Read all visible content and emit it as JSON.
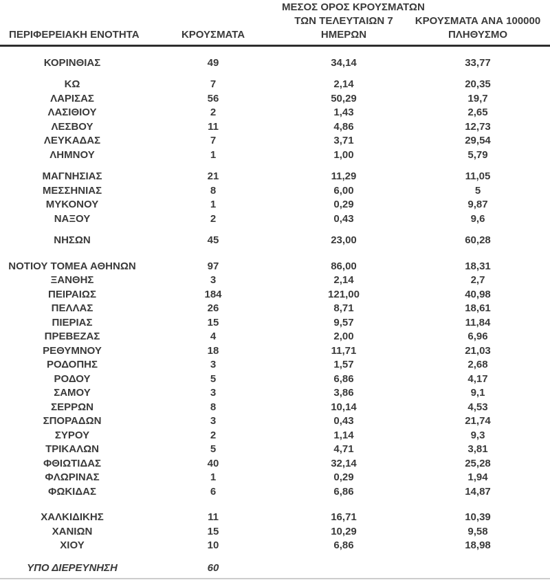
{
  "chart_data": {
    "type": "table",
    "columns": [
      {
        "key": "name",
        "lines": [
          "ΠΕΡΙΦΕΡΕΙΑΚΗ ΕΝΟΤΗΤΑ"
        ]
      },
      {
        "key": "cases",
        "lines": [
          "ΚΡΟΥΣΜΑΤΑ"
        ]
      },
      {
        "key": "avg7",
        "lines": [
          "ΜΕΣΟΣ ΟΡΟΣ ΚΡΟΥΣΜΑΤΩΝ",
          "ΤΩΝ ΤΕΛΕΥΤΑΙΩΝ 7",
          "ΗΜΕΡΩΝ"
        ]
      },
      {
        "key": "per100k",
        "lines": [
          "ΚΡΟΥΣΜΑΤΑ ΑΝΑ 100000",
          "ΠΛΗΘΥΣΜΟ"
        ]
      }
    ],
    "groups": [
      {
        "rows": [
          {
            "name": "ΚΟΡΙΝΘΙΑΣ",
            "cases": "49",
            "avg7": "34,14",
            "per100k": "33,77"
          }
        ]
      },
      {
        "rows": [
          {
            "name": "ΚΩ",
            "cases": "7",
            "avg7": "2,14",
            "per100k": "20,35"
          },
          {
            "name": "ΛΑΡΙΣΑΣ",
            "cases": "56",
            "avg7": "50,29",
            "per100k": "19,7"
          },
          {
            "name": "ΛΑΣΙΘΙΟΥ",
            "cases": "2",
            "avg7": "1,43",
            "per100k": "2,65"
          },
          {
            "name": "ΛΕΣΒΟΥ",
            "cases": "11",
            "avg7": "4,86",
            "per100k": "12,73"
          },
          {
            "name": "ΛΕΥΚΑΔΑΣ",
            "cases": "7",
            "avg7": "3,71",
            "per100k": "29,54"
          },
          {
            "name": "ΛΗΜΝΟΥ",
            "cases": "1",
            "avg7": "1,00",
            "per100k": "5,79"
          }
        ]
      },
      {
        "rows": [
          {
            "name": "ΜΑΓΝΗΣΙΑΣ",
            "cases": "21",
            "avg7": "11,29",
            "per100k": "11,05"
          },
          {
            "name": "ΜΕΣΣΗΝΙΑΣ",
            "cases": "8",
            "avg7": "6,00",
            "per100k": "5"
          },
          {
            "name": "ΜΥΚΟΝΟΥ",
            "cases": "1",
            "avg7": "0,29",
            "per100k": "9,87"
          },
          {
            "name": "ΝΑΞΟΥ",
            "cases": "2",
            "avg7": "0,43",
            "per100k": "9,6"
          }
        ]
      },
      {
        "rows": [
          {
            "name": "ΝΗΣΩΝ",
            "cases": "45",
            "avg7": "23,00",
            "per100k": "60,28"
          }
        ]
      },
      {
        "rows": [
          {
            "name": "ΝΟΤΙΟΥ ΤΟΜΕΑ ΑΘΗΝΩΝ",
            "cases": "97",
            "avg7": "86,00",
            "per100k": "18,31"
          },
          {
            "name": "ΞΑΝΘΗΣ",
            "cases": "3",
            "avg7": "2,14",
            "per100k": "2,7"
          },
          {
            "name": "ΠΕΙΡΑΙΩΣ",
            "cases": "184",
            "avg7": "121,00",
            "per100k": "40,98"
          },
          {
            "name": "ΠΕΛΛΑΣ",
            "cases": "26",
            "avg7": "8,71",
            "per100k": "18,61"
          },
          {
            "name": "ΠΙΕΡΙΑΣ",
            "cases": "15",
            "avg7": "9,57",
            "per100k": "11,84"
          },
          {
            "name": "ΠΡΕΒΕΖΑΣ",
            "cases": "4",
            "avg7": "2,00",
            "per100k": "6,96"
          },
          {
            "name": "ΡΕΘΥΜΝΟΥ",
            "cases": "18",
            "avg7": "11,71",
            "per100k": "21,03"
          },
          {
            "name": "ΡΟΔΟΠΗΣ",
            "cases": "3",
            "avg7": "1,57",
            "per100k": "2,68"
          },
          {
            "name": "ΡΟΔΟΥ",
            "cases": "5",
            "avg7": "6,86",
            "per100k": "4,17"
          },
          {
            "name": "ΣΑΜΟΥ",
            "cases": "3",
            "avg7": "3,86",
            "per100k": "9,1"
          },
          {
            "name": "ΣΕΡΡΩΝ",
            "cases": "8",
            "avg7": "10,14",
            "per100k": "4,53"
          },
          {
            "name": "ΣΠΟΡΑΔΩΝ",
            "cases": "3",
            "avg7": "0,43",
            "per100k": "21,74"
          },
          {
            "name": "ΣΥΡΟΥ",
            "cases": "2",
            "avg7": "1,14",
            "per100k": "9,3"
          },
          {
            "name": "ΤΡΙΚΑΛΩΝ",
            "cases": "5",
            "avg7": "4,71",
            "per100k": "3,81"
          },
          {
            "name": "ΦΘΙΩΤΙΔΑΣ",
            "cases": "40",
            "avg7": "32,14",
            "per100k": "25,28"
          },
          {
            "name": "ΦΛΩΡΙΝΑΣ",
            "cases": "1",
            "avg7": "0,29",
            "per100k": "1,94"
          },
          {
            "name": "ΦΩΚΙΔΑΣ",
            "cases": "6",
            "avg7": "6,86",
            "per100k": "14,87"
          }
        ]
      },
      {
        "rows": [
          {
            "name": "ΧΑΛΚΙΔΙΚΗΣ",
            "cases": "11",
            "avg7": "16,71",
            "per100k": "10,39"
          },
          {
            "name": "ΧΑΝΙΩΝ",
            "cases": "15",
            "avg7": "10,29",
            "per100k": "9,58"
          },
          {
            "name": "ΧΙΟΥ",
            "cases": "10",
            "avg7": "6,86",
            "per100k": "18,98"
          }
        ]
      },
      {
        "rows": [
          {
            "name": "ΥΠΟ ΔΙΕΡΕΥΝΗΣΗ",
            "cases": "60",
            "avg7": "",
            "per100k": "",
            "italic": true
          }
        ]
      }
    ]
  },
  "colors": {
    "text": "#3a3a3a",
    "header_rule": "#2d2d2d",
    "bottom_rule": "#cccccc",
    "background": "#ffffff"
  }
}
